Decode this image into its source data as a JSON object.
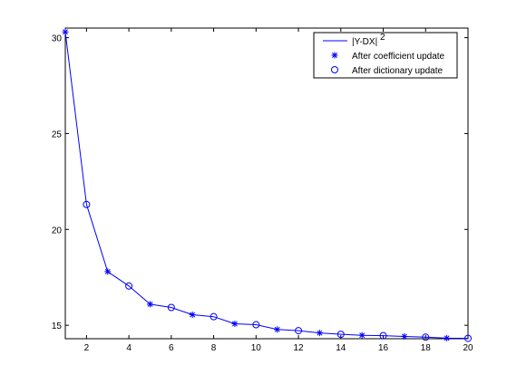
{
  "chart_data": {
    "type": "line",
    "title": "",
    "xlabel": "",
    "ylabel": "",
    "xlim": [
      1,
      20
    ],
    "ylim": [
      14.3,
      30.5
    ],
    "x_ticks": [
      2,
      4,
      6,
      8,
      10,
      12,
      14,
      16,
      18,
      20
    ],
    "y_ticks": [
      15,
      20,
      25,
      30
    ],
    "grid": false,
    "legend_position": "top-right",
    "legend": {
      "line_label": "|Y-DX|",
      "line_label_superscript": "2",
      "star_label": "After coefficient update",
      "circle_label": "After dictionary update"
    },
    "series_color": "#0000ff",
    "x": [
      1,
      2,
      3,
      4,
      5,
      6,
      7,
      8,
      9,
      10,
      11,
      12,
      13,
      14,
      15,
      16,
      17,
      18,
      19,
      20
    ],
    "values": [
      30.3,
      21.3,
      17.8,
      17.05,
      16.1,
      15.93,
      15.55,
      15.45,
      15.08,
      15.03,
      14.78,
      14.72,
      14.6,
      14.53,
      14.48,
      14.46,
      14.42,
      14.38,
      14.33,
      14.32
    ],
    "markers": [
      "star",
      "circle",
      "star",
      "circle",
      "star",
      "circle",
      "star",
      "circle",
      "star",
      "circle",
      "star",
      "circle",
      "star",
      "circle",
      "star",
      "circle",
      "star",
      "circle",
      "star",
      "circle"
    ]
  }
}
